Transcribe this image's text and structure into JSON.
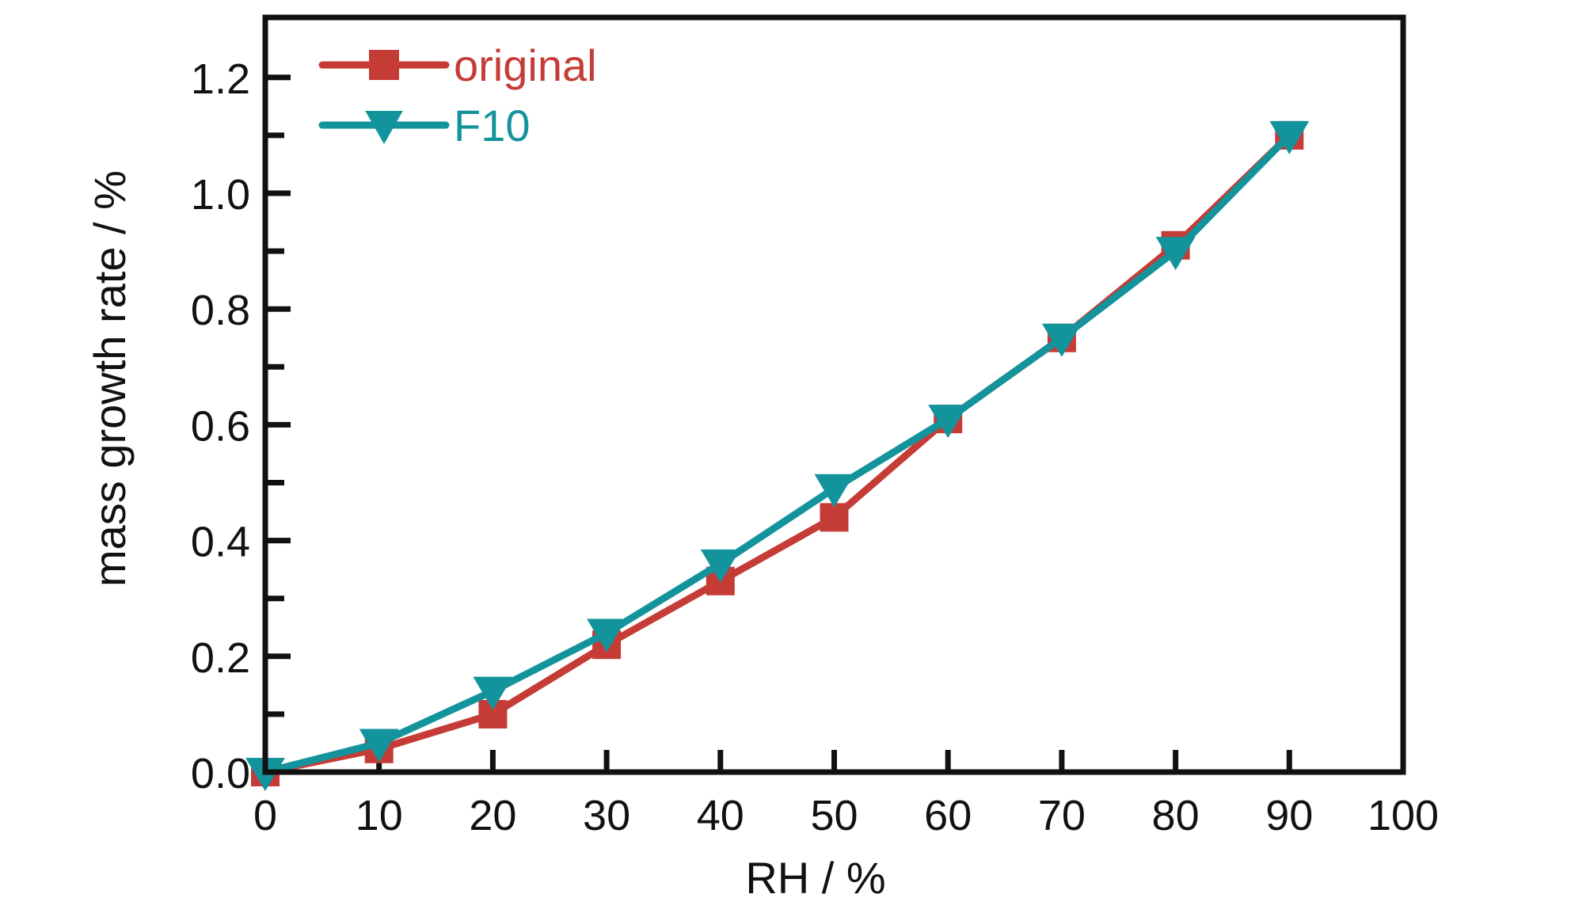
{
  "chart_data": {
    "type": "line",
    "title": "",
    "xlabel": "RH / %",
    "ylabel": "mass growth rate / %",
    "xlim": [
      0,
      100
    ],
    "ylim": [
      0,
      1.3
    ],
    "x_ticks": [
      "0",
      "10",
      "20",
      "30",
      "40",
      "50",
      "60",
      "70",
      "80",
      "90",
      "100"
    ],
    "y_ticks": [
      "0.0",
      "0.2",
      "0.4",
      "0.6",
      "0.8",
      "1.0",
      "1.2"
    ],
    "grid": false,
    "legend_position": "top-left",
    "x": [
      0,
      10,
      20,
      30,
      40,
      50,
      60,
      70,
      80,
      90
    ],
    "series": [
      {
        "name": "original",
        "color": "#c53b35",
        "marker": "square",
        "values": [
          0.0,
          0.04,
          0.1,
          0.22,
          0.33,
          0.44,
          0.61,
          0.75,
          0.91,
          1.1
        ]
      },
      {
        "name": "F10",
        "color": "#13939c",
        "marker": "triangle-down",
        "values": [
          0.0,
          0.05,
          0.14,
          0.24,
          0.36,
          0.49,
          0.61,
          0.75,
          0.9,
          1.1
        ]
      }
    ]
  }
}
